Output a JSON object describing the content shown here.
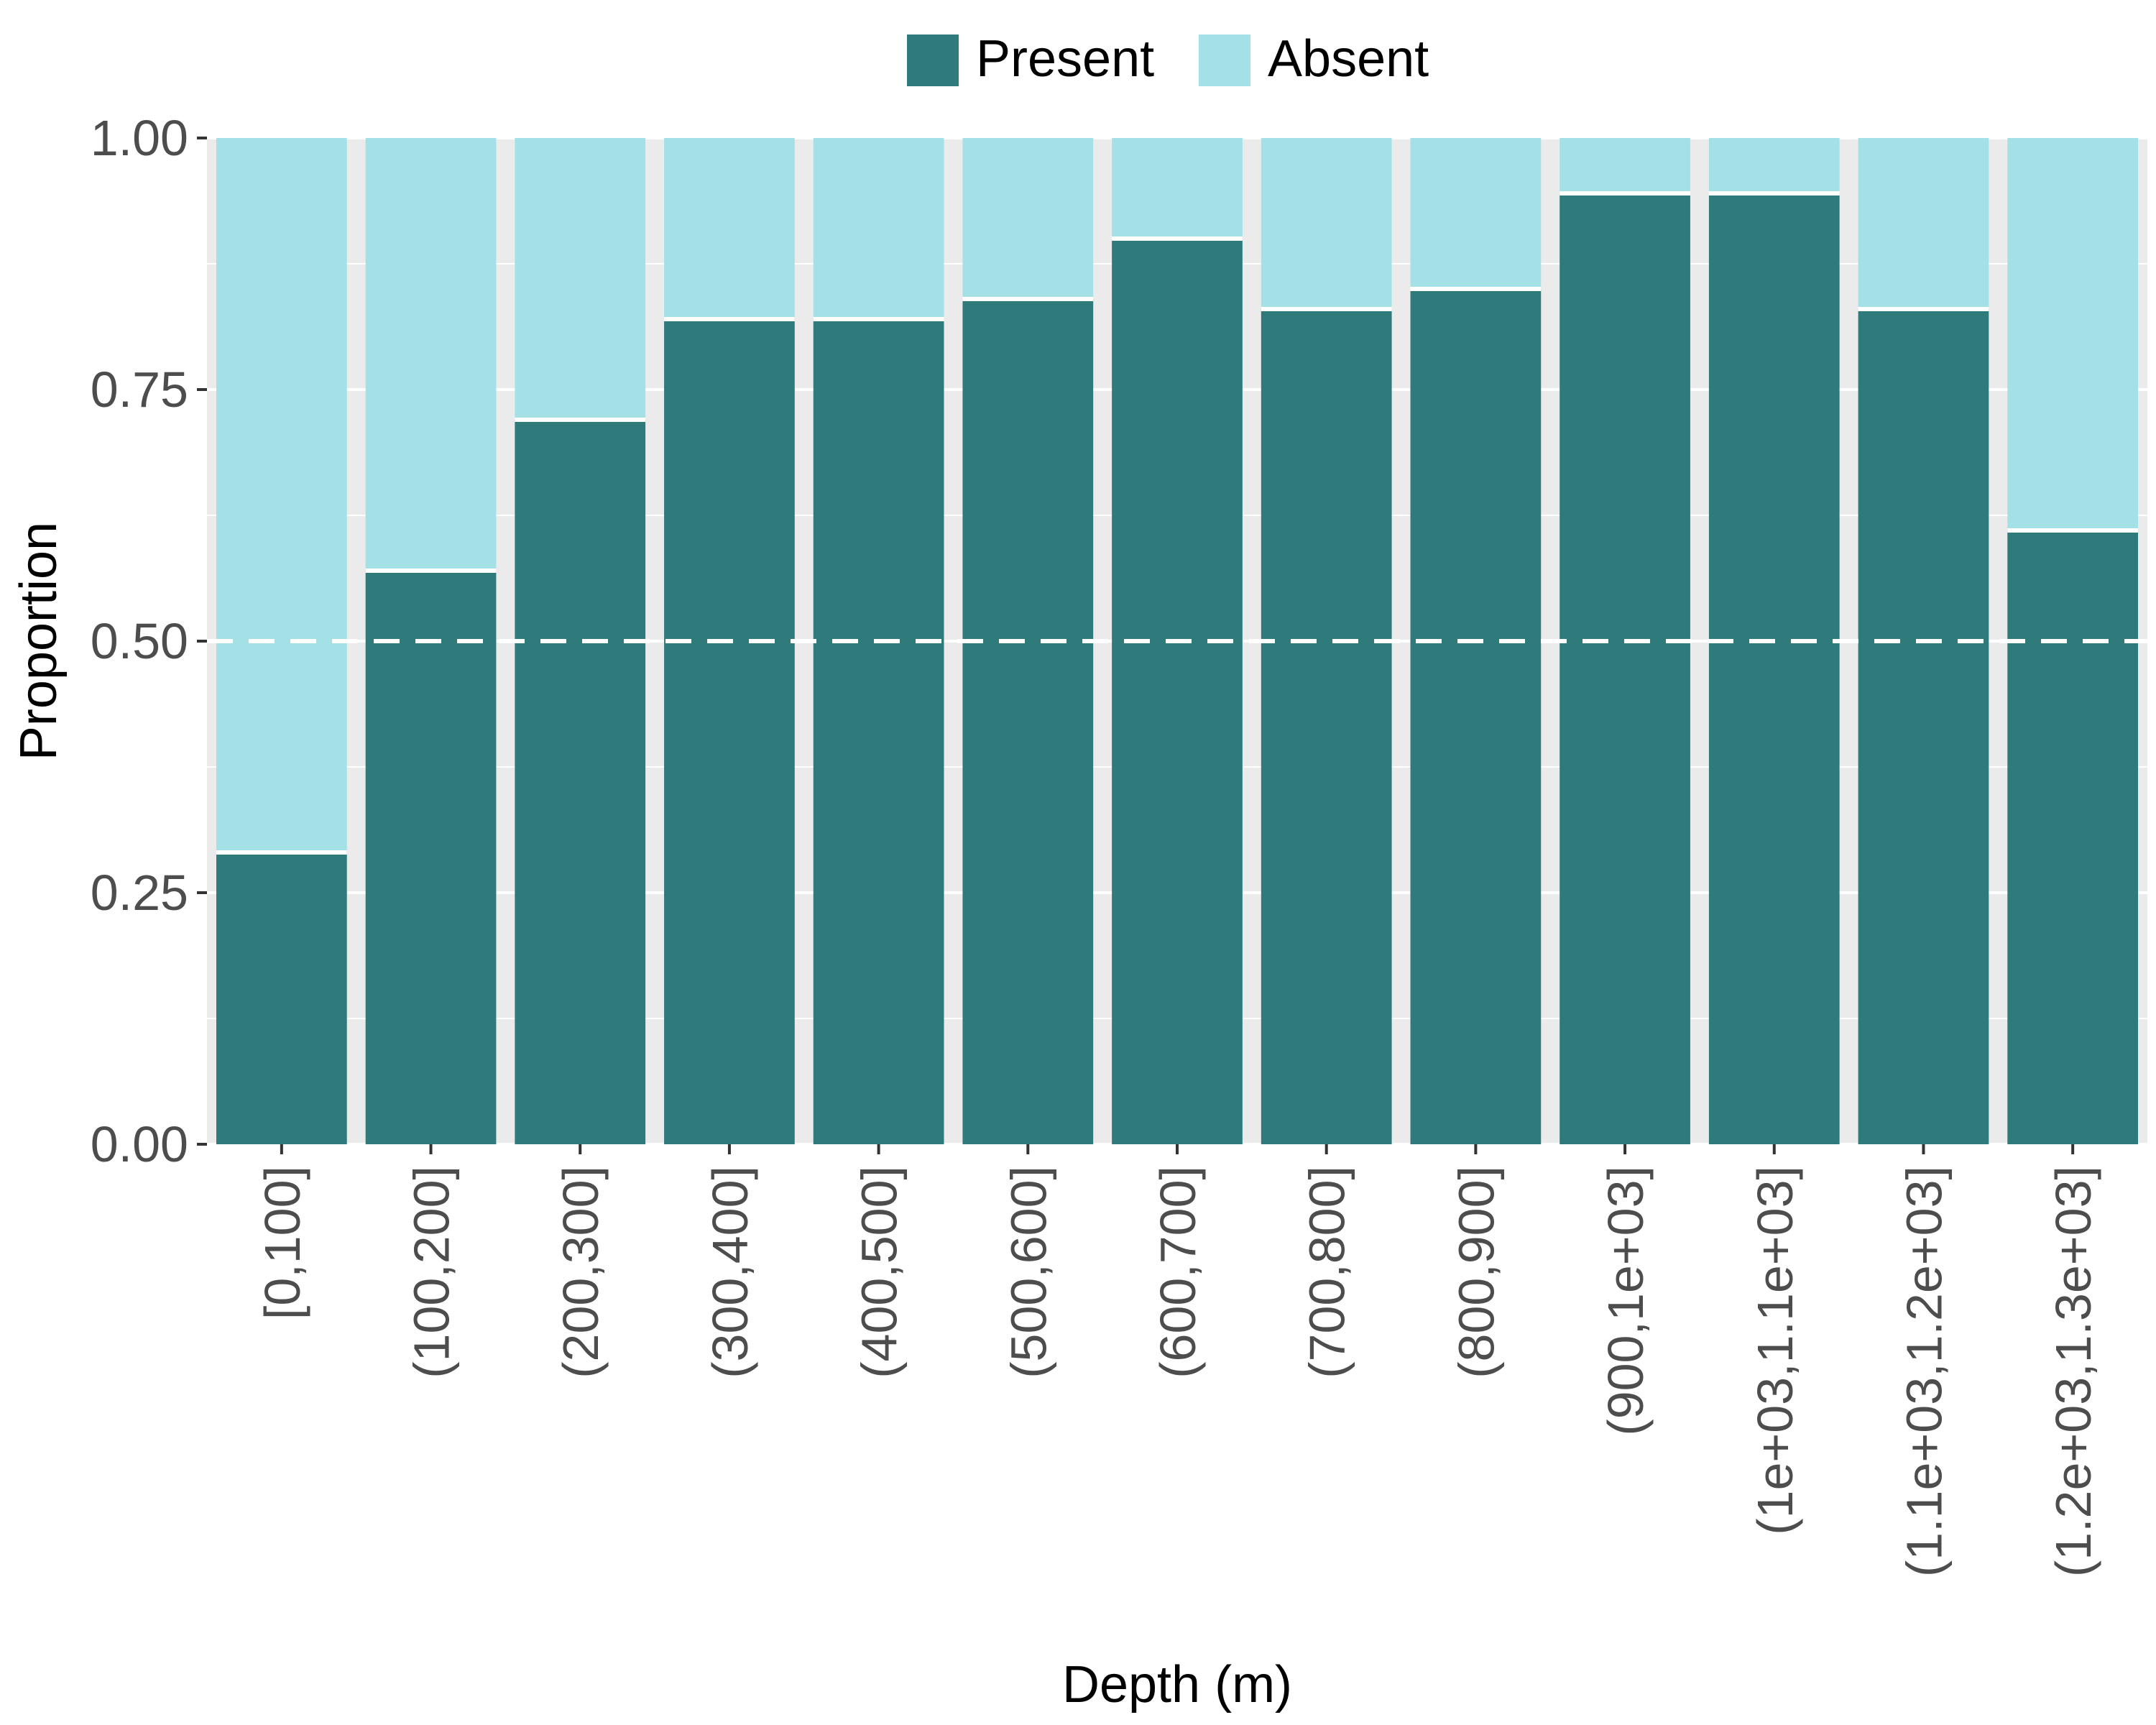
{
  "chart_data": {
    "type": "bar",
    "stacked": true,
    "title": "",
    "xlabel": "Depth (m)",
    "ylabel": "Proportion",
    "ylim": [
      0,
      1
    ],
    "yticks": [
      "0.00",
      "0.25",
      "0.50",
      "0.75",
      "1.00"
    ],
    "reference_line": 0.5,
    "legend_position": "top",
    "grid": true,
    "categories": [
      "[0,100]",
      "(100,200]",
      "(200,300]",
      "(300,400]",
      "(400,500]",
      "(500,600]",
      "(600,700]",
      "(700,800]",
      "(800,900]",
      "(900,1e+03]",
      "(1e+03,1.1e+03]",
      "(1.1e+03,1.2e+03]",
      "(1.2e+03,1.3e+03]"
    ],
    "series": [
      {
        "name": "Present",
        "color": "#2f7a7a",
        "values": [
          0.29,
          0.57,
          0.72,
          0.82,
          0.82,
          0.84,
          0.9,
          0.83,
          0.85,
          0.945,
          0.945,
          0.83,
          0.61
        ]
      },
      {
        "name": "Absent",
        "color": "#a4e1e7",
        "values": [
          0.71,
          0.43,
          0.28,
          0.18,
          0.18,
          0.16,
          0.1,
          0.17,
          0.15,
          0.055,
          0.055,
          0.17,
          0.39
        ]
      }
    ]
  }
}
